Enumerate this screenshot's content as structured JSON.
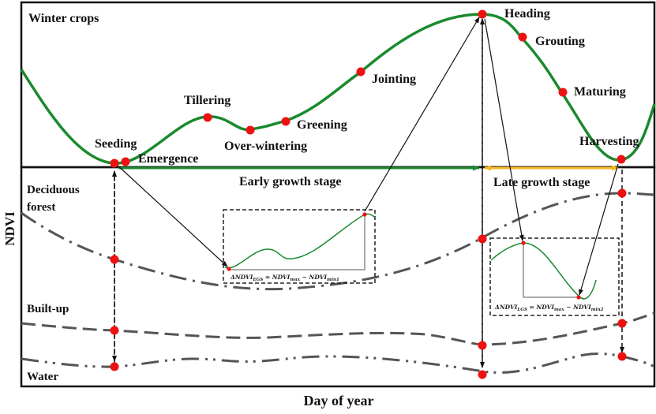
{
  "diagram": {
    "title": "Winter crops",
    "y_axis_label": "NDVI",
    "x_axis_label": "Day of year",
    "colors": {
      "crop_curve": "#1a8a2e",
      "stage_point": "#ee1111",
      "early_stage_arrow": "#1a8a2e",
      "late_stage_arrow": "#f5b820",
      "other_curves": "#555555",
      "frame": "#111111"
    },
    "crop_stages": [
      {
        "name": "Seeding"
      },
      {
        "name": "Emergence"
      },
      {
        "name": "Tillering"
      },
      {
        "name": "Over-wintering"
      },
      {
        "name": "Greening"
      },
      {
        "name": "Jointing"
      },
      {
        "name": "Heading"
      },
      {
        "name": "Grouting"
      },
      {
        "name": "Maturing"
      },
      {
        "name": "Harvesting"
      }
    ],
    "growth_stages": {
      "early": "Early growth stage",
      "late": "Late growth stage"
    },
    "land_covers": [
      {
        "name": "Deciduous forest",
        "line": "dash-dot"
      },
      {
        "name": "Built-up",
        "line": "dashed"
      },
      {
        "name": "Water",
        "line": "dash-dot-dot"
      }
    ],
    "insets": {
      "early": {
        "formula_delta": "ΔNDVI",
        "formula_sub": "EGS",
        "formula_eq": " = NDVI",
        "formula_max": "max",
        "formula_minus": " − NDVI",
        "formula_min": "min1"
      },
      "late": {
        "formula_delta": "ΔNDVI",
        "formula_sub": "LGS",
        "formula_eq": " = NDVI",
        "formula_max": "max",
        "formula_minus": " − NDVI",
        "formula_min": "min2"
      }
    }
  }
}
